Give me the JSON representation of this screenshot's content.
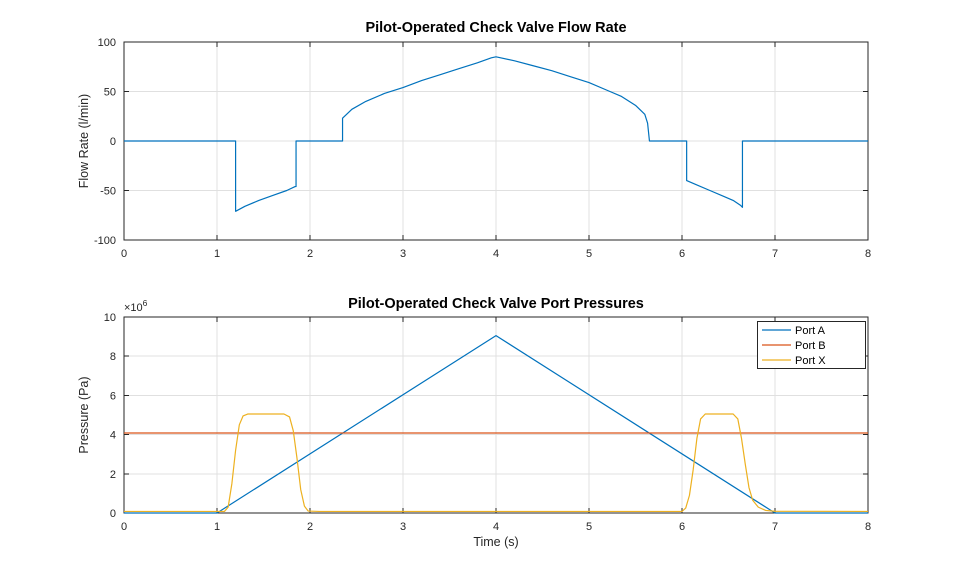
{
  "figure": {
    "background": "#ffffff",
    "axis_color": "#262626",
    "grid_color": "#e0e0e0"
  },
  "chart_data": [
    {
      "type": "line",
      "title": "Pilot-Operated Check Valve Flow Rate",
      "xlabel": "",
      "ylabel": "Flow Rate (l/min)",
      "xlim": [
        0,
        8
      ],
      "ylim": [
        -100,
        100
      ],
      "xticks": [
        0,
        1,
        2,
        3,
        4,
        5,
        6,
        7,
        8
      ],
      "xticklabels": [
        "0",
        "1",
        "2",
        "3",
        "4",
        "5",
        "6",
        "7",
        "8"
      ],
      "yticks": [
        -100,
        -50,
        0,
        50,
        100
      ],
      "yticklabels": [
        "-100",
        "-50",
        "0",
        "50",
        "100"
      ],
      "grid": true,
      "legend": null,
      "series": [
        {
          "name": "Flow Rate",
          "color": "#0072BD",
          "points": [
            [
              0,
              0
            ],
            [
              1.2,
              0
            ],
            [
              1.2,
              -71
            ],
            [
              1.3,
              -66
            ],
            [
              1.45,
              -60
            ],
            [
              1.6,
              -55
            ],
            [
              1.75,
              -50
            ],
            [
              1.84,
              -46
            ],
            [
              1.85,
              -46
            ],
            [
              1.85,
              0
            ],
            [
              2.35,
              0
            ],
            [
              2.35,
              23
            ],
            [
              2.45,
              32
            ],
            [
              2.6,
              40
            ],
            [
              2.8,
              48
            ],
            [
              3.0,
              54
            ],
            [
              3.2,
              61
            ],
            [
              3.4,
              67
            ],
            [
              3.6,
              73
            ],
            [
              3.8,
              79
            ],
            [
              3.95,
              84
            ],
            [
              4.0,
              85
            ],
            [
              4.2,
              81
            ],
            [
              4.4,
              76
            ],
            [
              4.6,
              71
            ],
            [
              4.8,
              65
            ],
            [
              5.0,
              59
            ],
            [
              5.2,
              51
            ],
            [
              5.35,
              45
            ],
            [
              5.5,
              36
            ],
            [
              5.6,
              27
            ],
            [
              5.63,
              18
            ],
            [
              5.65,
              0
            ],
            [
              6.05,
              0
            ],
            [
              6.05,
              -40
            ],
            [
              6.15,
              -44
            ],
            [
              6.3,
              -50
            ],
            [
              6.45,
              -56
            ],
            [
              6.55,
              -60
            ],
            [
              6.63,
              -65
            ],
            [
              6.65,
              -67
            ],
            [
              6.65,
              0
            ],
            [
              8,
              0
            ]
          ]
        }
      ]
    },
    {
      "type": "line",
      "title": "Pilot-Operated Check Valve Port Pressures",
      "xlabel": "Time (s)",
      "ylabel": "Pressure (Pa)",
      "y_exponent": {
        "base": "×10",
        "exp": "6"
      },
      "xlim": [
        0,
        8
      ],
      "ylim": [
        0,
        10000000
      ],
      "xticks": [
        0,
        1,
        2,
        3,
        4,
        5,
        6,
        7,
        8
      ],
      "xticklabels": [
        "0",
        "1",
        "2",
        "3",
        "4",
        "5",
        "6",
        "7",
        "8"
      ],
      "yticks": [
        0,
        2000000,
        4000000,
        6000000,
        8000000,
        10000000
      ],
      "yticklabels": [
        "0",
        "2",
        "4",
        "6",
        "8",
        "10"
      ],
      "grid": true,
      "legend": {
        "position": "northeast",
        "entries": [
          "Port A",
          "Port B",
          "Port X"
        ]
      },
      "series": [
        {
          "name": "Port A",
          "color": "#0072BD",
          "points": [
            [
              0,
              0
            ],
            [
              1,
              0
            ],
            [
              4,
              9050000
            ],
            [
              7,
              0
            ],
            [
              8,
              0
            ]
          ]
        },
        {
          "name": "Port B",
          "color": "#D95319",
          "points": [
            [
              0,
              4080000
            ],
            [
              8,
              4080000
            ]
          ]
        },
        {
          "name": "Port X",
          "color": "#EDB120",
          "points": [
            [
              0,
              80000
            ],
            [
              1.08,
              80000
            ],
            [
              1.12,
              300000
            ],
            [
              1.16,
              1500000
            ],
            [
              1.2,
              3200000
            ],
            [
              1.24,
              4500000
            ],
            [
              1.28,
              4950000
            ],
            [
              1.33,
              5050000
            ],
            [
              1.72,
              5050000
            ],
            [
              1.78,
              4900000
            ],
            [
              1.82,
              4200000
            ],
            [
              1.86,
              2800000
            ],
            [
              1.9,
              1200000
            ],
            [
              1.94,
              350000
            ],
            [
              1.98,
              100000
            ],
            [
              2.1,
              80000
            ],
            [
              6.0,
              80000
            ],
            [
              6.04,
              250000
            ],
            [
              6.08,
              900000
            ],
            [
              6.12,
              2200000
            ],
            [
              6.16,
              3800000
            ],
            [
              6.2,
              4800000
            ],
            [
              6.25,
              5050000
            ],
            [
              6.55,
              5050000
            ],
            [
              6.6,
              4800000
            ],
            [
              6.64,
              3800000
            ],
            [
              6.68,
              2500000
            ],
            [
              6.72,
              1300000
            ],
            [
              6.76,
              650000
            ],
            [
              6.82,
              300000
            ],
            [
              6.9,
              130000
            ],
            [
              7.0,
              90000
            ],
            [
              8,
              80000
            ]
          ]
        }
      ]
    }
  ]
}
